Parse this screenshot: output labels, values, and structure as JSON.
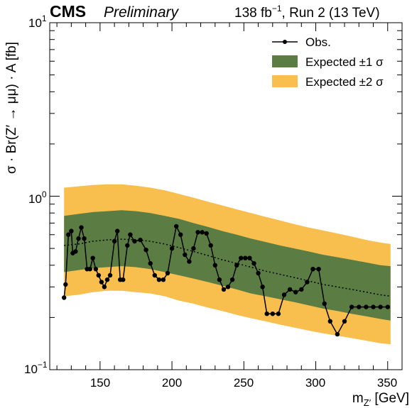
{
  "header": {
    "experiment": "CMS",
    "status": "Preliminary",
    "lumi_prefix": "138 fb",
    "lumi_exp": "−1",
    "lumi_suffix": ", Run 2 (13 TeV)"
  },
  "legend": {
    "observed": "Obs.",
    "band1": "Expected ±1 σ",
    "band2": "Expected ±2 σ"
  },
  "axis": {
    "y_title": "σ · Br(Z′ → μμ) · A [fb]",
    "x_title_main": "m",
    "x_title_sub": "Z′",
    "x_title_unit": " [GeV]",
    "x_ticks": [
      "150",
      "200",
      "250",
      "300",
      "350"
    ],
    "y_tick_base": "10",
    "y_ticks_exp": [
      "−1",
      "0",
      "1"
    ]
  },
  "colors": {
    "band1": "#5b7d43",
    "band2": "#f8be4e",
    "observed": "#000000",
    "expected": "#000000"
  },
  "chart_data": {
    "type": "line",
    "x_log": false,
    "y_log": true,
    "xlim": [
      115,
      360
    ],
    "ylim": [
      0.1,
      10
    ],
    "xlabel": "mZ′ [GeV]",
    "ylabel": "σ · Br(Z′ → μμ) · A [fb]",
    "legend_position": "top-right",
    "x_ticks": [
      150,
      200,
      250,
      300,
      350
    ],
    "y_ticks": [
      0.1,
      1,
      10
    ],
    "observed": {
      "name": "Obs.",
      "x": [
        125,
        126,
        128,
        130,
        131,
        133,
        135,
        137,
        139,
        141,
        143,
        145,
        147,
        149,
        151,
        153,
        155,
        157,
        160,
        162,
        164,
        166,
        169,
        171,
        174,
        178,
        182,
        185,
        188,
        191,
        194,
        197,
        200,
        203,
        206,
        209,
        212,
        215,
        218,
        221,
        224,
        227,
        230,
        233,
        236,
        239,
        242,
        245,
        248,
        251,
        254,
        257,
        260,
        263,
        266,
        270,
        274,
        278,
        282,
        286,
        290,
        294,
        298,
        302,
        306,
        310,
        315,
        320,
        325,
        330,
        335,
        340,
        345,
        350
      ],
      "y": [
        0.26,
        0.31,
        0.6,
        0.63,
        0.47,
        0.48,
        0.57,
        0.66,
        0.57,
        0.38,
        0.38,
        0.44,
        0.38,
        0.35,
        0.32,
        0.3,
        0.33,
        0.35,
        0.55,
        0.63,
        0.33,
        0.33,
        0.52,
        0.6,
        0.55,
        0.56,
        0.49,
        0.41,
        0.35,
        0.33,
        0.33,
        0.36,
        0.5,
        0.67,
        0.6,
        0.46,
        0.42,
        0.5,
        0.62,
        0.62,
        0.61,
        0.52,
        0.4,
        0.33,
        0.29,
        0.3,
        0.33,
        0.4,
        0.44,
        0.44,
        0.44,
        0.41,
        0.36,
        0.3,
        0.21,
        0.21,
        0.21,
        0.27,
        0.29,
        0.28,
        0.29,
        0.32,
        0.38,
        0.38,
        0.24,
        0.19,
        0.16,
        0.19,
        0.23,
        0.23,
        0.23,
        0.23,
        0.23,
        0.23
      ]
    },
    "expected": {
      "x": [
        125,
        135,
        145,
        155,
        165,
        175,
        185,
        195,
        205,
        215,
        225,
        235,
        245,
        255,
        265,
        275,
        285,
        295,
        305,
        315,
        325,
        335,
        345,
        352
      ],
      "median": [
        0.52,
        0.53,
        0.55,
        0.56,
        0.565,
        0.56,
        0.55,
        0.53,
        0.505,
        0.48,
        0.455,
        0.43,
        0.41,
        0.39,
        0.37,
        0.355,
        0.34,
        0.325,
        0.31,
        0.3,
        0.29,
        0.28,
        0.27,
        0.265
      ],
      "band1_lo": [
        0.365,
        0.375,
        0.385,
        0.39,
        0.395,
        0.39,
        0.38,
        0.365,
        0.35,
        0.335,
        0.32,
        0.305,
        0.29,
        0.275,
        0.265,
        0.255,
        0.245,
        0.235,
        0.225,
        0.218,
        0.21,
        0.203,
        0.196,
        0.192
      ],
      "band1_hi": [
        0.77,
        0.79,
        0.81,
        0.82,
        0.83,
        0.82,
        0.8,
        0.77,
        0.74,
        0.7,
        0.665,
        0.63,
        0.6,
        0.57,
        0.545,
        0.52,
        0.5,
        0.48,
        0.46,
        0.445,
        0.43,
        0.415,
        0.4,
        0.395
      ],
      "band2_lo": [
        0.265,
        0.27,
        0.28,
        0.285,
        0.285,
        0.28,
        0.275,
        0.265,
        0.25,
        0.24,
        0.228,
        0.218,
        0.207,
        0.198,
        0.19,
        0.182,
        0.175,
        0.168,
        0.162,
        0.157,
        0.152,
        0.147,
        0.142,
        0.14
      ],
      "band2_hi": [
        1.12,
        1.14,
        1.16,
        1.17,
        1.17,
        1.15,
        1.12,
        1.08,
        1.03,
        0.98,
        0.93,
        0.885,
        0.84,
        0.8,
        0.76,
        0.725,
        0.69,
        0.66,
        0.635,
        0.61,
        0.585,
        0.56,
        0.54,
        0.53
      ]
    }
  }
}
